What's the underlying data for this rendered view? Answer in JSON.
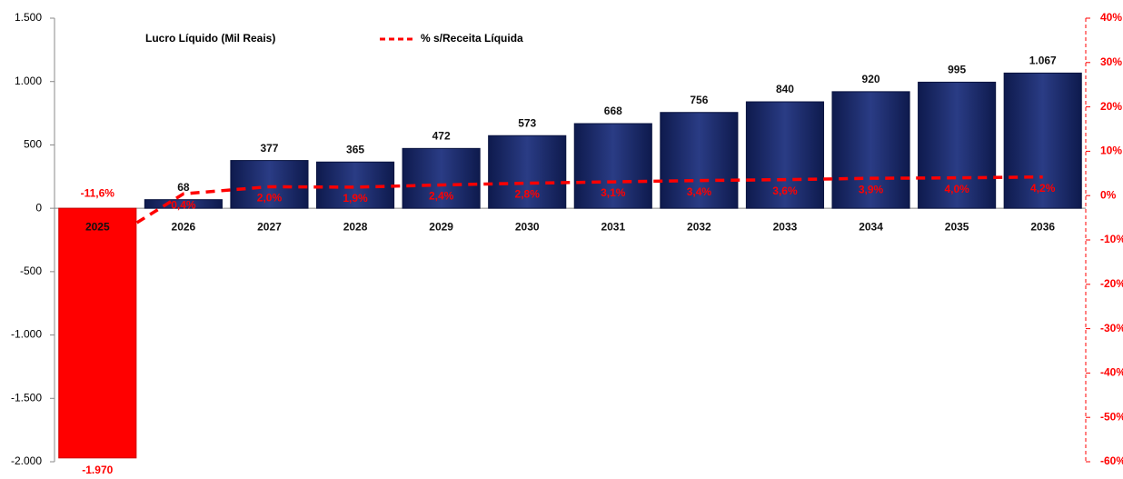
{
  "chart_data": {
    "type": "bar",
    "categories": [
      "2025",
      "2026",
      "2027",
      "2028",
      "2029",
      "2030",
      "2031",
      "2032",
      "2033",
      "2034",
      "2035",
      "2036"
    ],
    "series": [
      {
        "name": "Lucro Líquido (Mil Reais)",
        "color": "#1c2a6b",
        "negative_color": "#ff0000",
        "values": [
          -1970,
          68,
          377,
          365,
          472,
          573,
          668,
          756,
          840,
          920,
          995,
          1067
        ],
        "value_labels": [
          "-1.970",
          "68",
          "377",
          "365",
          "472",
          "573",
          "668",
          "756",
          "840",
          "920",
          "995",
          "1.067"
        ]
      },
      {
        "name": "% s/Receita Líquida",
        "type": "line",
        "axis": "y2",
        "color": "#ff0000",
        "values": [
          -11.6,
          0.4,
          2.0,
          1.9,
          2.4,
          2.8,
          3.1,
          3.4,
          3.6,
          3.9,
          4.0,
          4.2
        ],
        "value_labels": [
          "-11,6%",
          "0,4%",
          "2,0%",
          "1,9%",
          "2,4%",
          "2,8%",
          "3,1%",
          "3,4%",
          "3,6%",
          "3,9%",
          "4,0%",
          "4,2%"
        ]
      }
    ],
    "ylim": [
      -2000,
      1500
    ],
    "yticks": [
      {
        "value": -2000,
        "label": "-2.000"
      },
      {
        "value": -1500,
        "label": "-1.500"
      },
      {
        "value": -1000,
        "label": "-1.000"
      },
      -500,
      0,
      500,
      {
        "value": 1000,
        "label": "1.000"
      },
      {
        "value": 1500,
        "label": "1.500"
      }
    ],
    "y2lim": [
      -60,
      40
    ],
    "y2ticks": [
      {
        "value": -60,
        "label": "-60%"
      },
      {
        "value": -50,
        "label": "-50%"
      },
      {
        "value": -40,
        "label": "-40%"
      },
      {
        "value": -30,
        "label": "-30%"
      },
      {
        "value": -20,
        "label": "-20%"
      },
      {
        "value": -10,
        "label": "-10%"
      },
      {
        "value": 0,
        "label": "0%"
      },
      {
        "value": 10,
        "label": "10%"
      },
      {
        "value": 20,
        "label": "20%"
      },
      {
        "value": 30,
        "label": "30%"
      },
      {
        "value": 40,
        "label": "40%"
      }
    ],
    "grid": false
  }
}
